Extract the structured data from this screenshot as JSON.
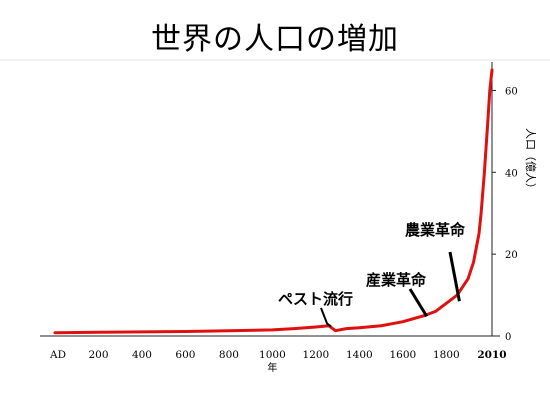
{
  "title": "世界の人口の増加",
  "chart_data": {
    "type": "line",
    "title": "世界の人口の増加",
    "xlabel": "年",
    "ylabel": "人口（億人）",
    "xlim": [
      0,
      2010
    ],
    "ylim": [
      0,
      65
    ],
    "x_ticks": [
      {
        "label": "AD",
        "value": 0
      },
      {
        "label": "200",
        "value": 200
      },
      {
        "label": "400",
        "value": 400
      },
      {
        "label": "600",
        "value": 600
      },
      {
        "label": "800",
        "value": 800
      },
      {
        "label": "1000",
        "value": 1000
      },
      {
        "label": "1200",
        "value": 1200
      },
      {
        "label": "1400",
        "value": 1400
      },
      {
        "label": "1600",
        "value": 1600
      },
      {
        "label": "1800",
        "value": 1800
      },
      {
        "label": "2010",
        "value": 2010
      }
    ],
    "y_ticks": [
      {
        "label": "0",
        "value": 0
      },
      {
        "label": "20",
        "value": 20
      },
      {
        "label": "40",
        "value": 40
      },
      {
        "label": "60",
        "value": 60
      }
    ],
    "series": [
      {
        "color": "#e01010",
        "points": [
          {
            "x": 0,
            "y": 0.8
          },
          {
            "x": 200,
            "y": 0.9
          },
          {
            "x": 400,
            "y": 1.0
          },
          {
            "x": 600,
            "y": 1.1
          },
          {
            "x": 800,
            "y": 1.3
          },
          {
            "x": 1000,
            "y": 1.5
          },
          {
            "x": 1100,
            "y": 1.8
          },
          {
            "x": 1200,
            "y": 2.2
          },
          {
            "x": 1260,
            "y": 2.5
          },
          {
            "x": 1290,
            "y": 1.3
          },
          {
            "x": 1340,
            "y": 1.8
          },
          {
            "x": 1400,
            "y": 2.0
          },
          {
            "x": 1500,
            "y": 2.5
          },
          {
            "x": 1600,
            "y": 3.5
          },
          {
            "x": 1700,
            "y": 5.0
          },
          {
            "x": 1750,
            "y": 6.0
          },
          {
            "x": 1800,
            "y": 8.0
          },
          {
            "x": 1850,
            "y": 10.0
          },
          {
            "x": 1900,
            "y": 14.0
          },
          {
            "x": 1925,
            "y": 18.0
          },
          {
            "x": 1950,
            "y": 25.0
          },
          {
            "x": 1960,
            "y": 30.0
          },
          {
            "x": 1975,
            "y": 40.0
          },
          {
            "x": 1990,
            "y": 52.0
          },
          {
            "x": 2000,
            "y": 60.0
          },
          {
            "x": 2010,
            "y": 65.0
          }
        ]
      }
    ],
    "annotations": [
      {
        "label": "ペスト流行",
        "x": 1270,
        "y": 2.3
      },
      {
        "label": "産業革命",
        "x": 1710,
        "y": 4.8
      },
      {
        "label": "農業革命",
        "x": 1860,
        "y": 8.5
      }
    ]
  }
}
